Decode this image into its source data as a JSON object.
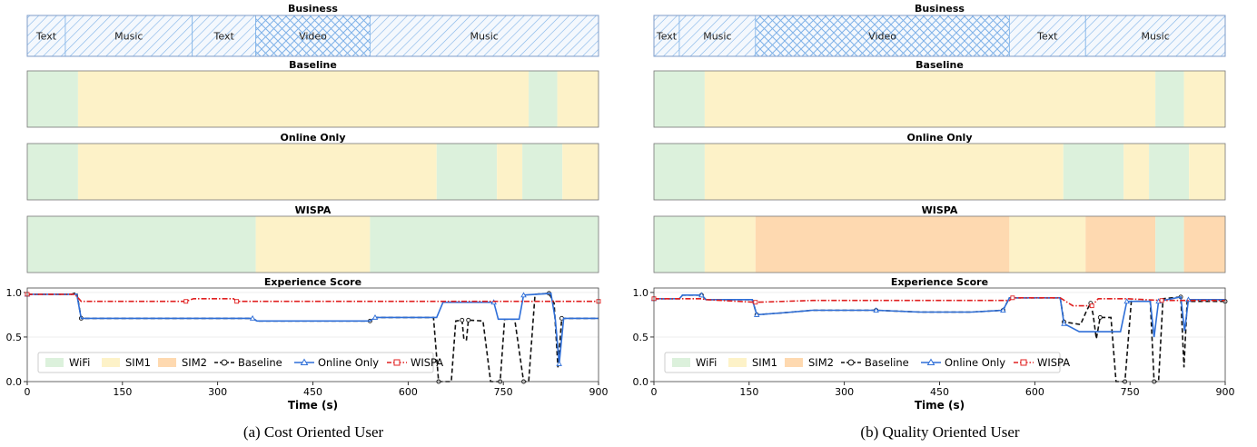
{
  "figure": {
    "panels": [
      {
        "caption": "(a) Cost Oriented User",
        "business": {
          "title": "Business",
          "segments": [
            {
              "label": "Text",
              "start": 0,
              "end": 60,
              "hatch": "diag"
            },
            {
              "label": "Music",
              "start": 60,
              "end": 260,
              "hatch": "diag"
            },
            {
              "label": "Text",
              "start": 260,
              "end": 360,
              "hatch": "diag"
            },
            {
              "label": "Video",
              "start": 360,
              "end": 540,
              "hatch": "cross"
            },
            {
              "label": "Music",
              "start": 540,
              "end": 900,
              "hatch": "diag"
            }
          ]
        },
        "timelines": [
          {
            "title": "Baseline",
            "segments": [
              {
                "net": "WiFi",
                "start": 0,
                "end": 80
              },
              {
                "net": "SIM1",
                "start": 80,
                "end": 790
              },
              {
                "net": "WiFi",
                "start": 790,
                "end": 835
              },
              {
                "net": "SIM1",
                "start": 835,
                "end": 900
              }
            ]
          },
          {
            "title": "Online Only",
            "segments": [
              {
                "net": "WiFi",
                "start": 0,
                "end": 80
              },
              {
                "net": "SIM1",
                "start": 80,
                "end": 645
              },
              {
                "net": "WiFi",
                "start": 645,
                "end": 740
              },
              {
                "net": "SIM1",
                "start": 740,
                "end": 780
              },
              {
                "net": "WiFi",
                "start": 780,
                "end": 843
              },
              {
                "net": "SIM1",
                "start": 843,
                "end": 900
              }
            ]
          },
          {
            "title": "WISPA",
            "segments": [
              {
                "net": "WiFi",
                "start": 0,
                "end": 360
              },
              {
                "net": "SIM1",
                "start": 360,
                "end": 540
              },
              {
                "net": "WiFi",
                "start": 540,
                "end": 900
              }
            ]
          }
        ]
      },
      {
        "caption": "(b) Quality Oriented User",
        "business": {
          "title": "Business",
          "segments": [
            {
              "label": "Text",
              "start": 0,
              "end": 40,
              "hatch": "diag"
            },
            {
              "label": "Music",
              "start": 40,
              "end": 160,
              "hatch": "diag"
            },
            {
              "label": "Video",
              "start": 160,
              "end": 560,
              "hatch": "cross"
            },
            {
              "label": "Text",
              "start": 560,
              "end": 680,
              "hatch": "diag"
            },
            {
              "label": "Music",
              "start": 680,
              "end": 900,
              "hatch": "diag"
            }
          ]
        },
        "timelines": [
          {
            "title": "Baseline",
            "segments": [
              {
                "net": "WiFi",
                "start": 0,
                "end": 80
              },
              {
                "net": "SIM1",
                "start": 80,
                "end": 790
              },
              {
                "net": "WiFi",
                "start": 790,
                "end": 835
              },
              {
                "net": "SIM1",
                "start": 835,
                "end": 900
              }
            ]
          },
          {
            "title": "Online Only",
            "segments": [
              {
                "net": "WiFi",
                "start": 0,
                "end": 80
              },
              {
                "net": "SIM1",
                "start": 80,
                "end": 645
              },
              {
                "net": "WiFi",
                "start": 645,
                "end": 740
              },
              {
                "net": "SIM1",
                "start": 740,
                "end": 780
              },
              {
                "net": "WiFi",
                "start": 780,
                "end": 843
              },
              {
                "net": "SIM1",
                "start": 843,
                "end": 900
              }
            ]
          },
          {
            "title": "WISPA",
            "segments": [
              {
                "net": "WiFi",
                "start": 0,
                "end": 80
              },
              {
                "net": "SIM1",
                "start": 80,
                "end": 160
              },
              {
                "net": "SIM2",
                "start": 160,
                "end": 560
              },
              {
                "net": "SIM1",
                "start": 560,
                "end": 680
              },
              {
                "net": "SIM2",
                "start": 680,
                "end": 790
              },
              {
                "net": "WiFi",
                "start": 790,
                "end": 835
              },
              {
                "net": "SIM2",
                "start": 835,
                "end": 900
              }
            ]
          }
        ]
      }
    ],
    "colors": {
      "WiFi": "#dcf1dc",
      "SIM1": "#fdf2c8",
      "SIM2": "#fed9b0",
      "hatch": "#7fb2e8",
      "hatch_bg": "#f4f8fd",
      "Baseline": "#111111",
      "Online Only": "#2f6fd8",
      "WISPA": "#e02020"
    }
  },
  "chart_data": [
    {
      "type": "line",
      "title": "Experience Score",
      "xlabel": "Time (s)",
      "ylabel": "",
      "xlim": [
        0,
        900
      ],
      "ylim": [
        0,
        1.05
      ],
      "xticks": [
        0,
        150,
        300,
        450,
        600,
        750,
        900
      ],
      "yticks": [
        "0.0",
        "0.5",
        "1.0"
      ],
      "legend": {
        "position": "bottom-left",
        "entries": [
          "WiFi",
          "SIM1",
          "SIM2",
          "Baseline",
          "Online Only",
          "WISPA"
        ]
      },
      "series": [
        {
          "name": "Baseline",
          "points": [
            [
              0,
              0.98
            ],
            [
              70,
              0.98
            ],
            [
              78,
              1.0
            ],
            [
              85,
              0.71
            ],
            [
              355,
              0.71
            ],
            [
              362,
              0.68
            ],
            [
              540,
              0.68
            ],
            [
              548,
              0.72
            ],
            [
              640,
              0.72
            ],
            [
              648,
              0.0
            ],
            [
              668,
              0.0
            ],
            [
              675,
              0.68
            ],
            [
              685,
              0.69
            ],
            [
              688,
              0.47
            ],
            [
              692,
              0.47
            ],
            [
              695,
              0.69
            ],
            [
              718,
              0.68
            ],
            [
              730,
              0.0
            ],
            [
              745,
              0.0
            ],
            [
              752,
              0.7
            ],
            [
              768,
              0.7
            ],
            [
              782,
              0.0
            ],
            [
              790,
              0.0
            ],
            [
              800,
              0.98
            ],
            [
              822,
              0.99
            ],
            [
              830,
              0.88
            ],
            [
              836,
              0.16
            ],
            [
              842,
              0.71
            ],
            [
              900,
              0.71
            ]
          ]
        },
        {
          "name": "Online Only",
          "points": [
            [
              0,
              0.98
            ],
            [
              78,
              0.98
            ],
            [
              85,
              0.71
            ],
            [
              355,
              0.71
            ],
            [
              362,
              0.68
            ],
            [
              540,
              0.68
            ],
            [
              548,
              0.72
            ],
            [
              645,
              0.72
            ],
            [
              655,
              0.89
            ],
            [
              735,
              0.89
            ],
            [
              742,
              0.7
            ],
            [
              775,
              0.7
            ],
            [
              782,
              0.97
            ],
            [
              825,
              0.99
            ],
            [
              832,
              0.69
            ],
            [
              838,
              0.2
            ],
            [
              845,
              0.71
            ],
            [
              900,
              0.71
            ]
          ]
        },
        {
          "name": "WISPA",
          "points": [
            [
              0,
              0.98
            ],
            [
              75,
              0.98
            ],
            [
              85,
              0.9
            ],
            [
              250,
              0.9
            ],
            [
              262,
              0.93
            ],
            [
              325,
              0.93
            ],
            [
              330,
              0.9
            ],
            [
              538,
              0.9
            ],
            [
              548,
              0.9
            ],
            [
              900,
              0.9
            ]
          ]
        }
      ]
    },
    {
      "type": "line",
      "title": "Experience Score",
      "xlabel": "Time (s)",
      "ylabel": "",
      "xlim": [
        0,
        900
      ],
      "ylim": [
        0,
        1.05
      ],
      "xticks": [
        0,
        150,
        300,
        450,
        600,
        750,
        900
      ],
      "yticks": [
        "0.0",
        "0.5",
        "1.0"
      ],
      "legend": {
        "position": "bottom-left",
        "entries": [
          "WiFi",
          "SIM1",
          "SIM2",
          "Baseline",
          "Online Only",
          "WISPA"
        ]
      },
      "series": [
        {
          "name": "Baseline",
          "points": [
            [
              0,
              0.93
            ],
            [
              40,
              0.93
            ],
            [
              45,
              0.97
            ],
            [
              75,
              0.97
            ],
            [
              82,
              0.92
            ],
            [
              155,
              0.92
            ],
            [
              162,
              0.75
            ],
            [
              200,
              0.77
            ],
            [
              250,
              0.8
            ],
            [
              350,
              0.8
            ],
            [
              420,
              0.78
            ],
            [
              500,
              0.78
            ],
            [
              550,
              0.8
            ],
            [
              560,
              0.94
            ],
            [
              640,
              0.94
            ],
            [
              646,
              0.67
            ],
            [
              672,
              0.64
            ],
            [
              682,
              0.8
            ],
            [
              688,
              0.88
            ],
            [
              692,
              0.75
            ],
            [
              697,
              0.48
            ],
            [
              703,
              0.72
            ],
            [
              720,
              0.72
            ],
            [
              728,
              0.0
            ],
            [
              742,
              0.0
            ],
            [
              752,
              0.9
            ],
            [
              782,
              0.9
            ],
            [
              788,
              0.0
            ],
            [
              795,
              0.0
            ],
            [
              802,
              0.93
            ],
            [
              830,
              0.95
            ],
            [
              835,
              0.16
            ],
            [
              840,
              0.9
            ],
            [
              900,
              0.9
            ]
          ]
        },
        {
          "name": "Online Only",
          "points": [
            [
              0,
              0.93
            ],
            [
              40,
              0.93
            ],
            [
              45,
              0.97
            ],
            [
              75,
              0.97
            ],
            [
              82,
              0.92
            ],
            [
              155,
              0.92
            ],
            [
              162,
              0.75
            ],
            [
              200,
              0.77
            ],
            [
              250,
              0.8
            ],
            [
              350,
              0.8
            ],
            [
              420,
              0.78
            ],
            [
              500,
              0.78
            ],
            [
              550,
              0.8
            ],
            [
              560,
              0.94
            ],
            [
              640,
              0.94
            ],
            [
              646,
              0.65
            ],
            [
              670,
              0.56
            ],
            [
              735,
              0.56
            ],
            [
              745,
              0.9
            ],
            [
              782,
              0.9
            ],
            [
              788,
              0.5
            ],
            [
              795,
              0.9
            ],
            [
              830,
              0.95
            ],
            [
              836,
              0.57
            ],
            [
              842,
              0.92
            ],
            [
              900,
              0.92
            ]
          ]
        },
        {
          "name": "WISPA",
          "points": [
            [
              0,
              0.93
            ],
            [
              75,
              0.93
            ],
            [
              82,
              0.92
            ],
            [
              160,
              0.89
            ],
            [
              250,
              0.91
            ],
            [
              560,
              0.91
            ],
            [
              565,
              0.94
            ],
            [
              640,
              0.94
            ],
            [
              660,
              0.85
            ],
            [
              690,
              0.85
            ],
            [
              700,
              0.93
            ],
            [
              745,
              0.93
            ],
            [
              800,
              0.91
            ],
            [
              900,
              0.91
            ]
          ]
        }
      ]
    }
  ]
}
